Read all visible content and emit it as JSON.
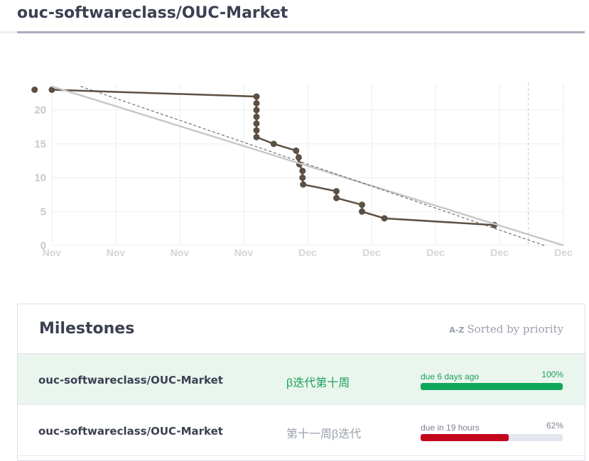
{
  "repo_title": "ouc-softwareclass/OUC-Market",
  "chart_data": {
    "type": "line",
    "title": "",
    "xlabel": "",
    "ylabel": "",
    "ylim": [
      0,
      24
    ],
    "yticks": [
      0,
      5,
      10,
      15,
      20
    ],
    "x_tick_labels": [
      "Nov",
      "Nov",
      "Nov",
      "Nov",
      "Dec",
      "Dec",
      "Dec",
      "Dec",
      "Dec"
    ],
    "grid": true,
    "series": [
      {
        "role": "actual",
        "color": "#5c4f43",
        "x": [
          0,
          3.2,
          3.2,
          3.2,
          3.2,
          3.2,
          3.2,
          3.2,
          3.47,
          3.82,
          3.86,
          3.87,
          3.92,
          3.92,
          3.93,
          4.45,
          4.45,
          4.85,
          4.85,
          5.2,
          6.92
        ],
        "values": [
          23,
          22,
          21,
          20,
          19,
          18,
          17,
          16,
          15,
          14,
          13,
          12,
          11,
          10,
          9,
          8,
          7,
          6,
          5,
          4,
          3
        ],
        "start_marker": {
          "x": -0.27,
          "y": 23
        }
      },
      {
        "role": "ideal",
        "color": "#c8c8c8",
        "x": [
          0,
          8
        ],
        "values": [
          23.5,
          0
        ]
      },
      {
        "role": "trend",
        "color": "#555555",
        "dashed": true,
        "x": [
          0.45,
          7.7
        ],
        "values": [
          23.5,
          0
        ]
      }
    ],
    "due_marker_x": 7.45
  },
  "milestones": {
    "title": "Milestones",
    "sort_icon": "A-Z",
    "sort_label": "Sorted by priority",
    "rows": [
      {
        "repo": "ouc-softwareclass/OUC-Market",
        "name": "β迭代第十周",
        "due": "due 6 days ago",
        "percent": "100%",
        "progress": 1.0,
        "color": "#1aa058",
        "bar_color": "#0da65a",
        "complete": true
      },
      {
        "repo": "ouc-softwareclass/OUC-Market",
        "name": "第十一周β迭代",
        "due": "due in 19 hours",
        "percent": "62%",
        "progress": 0.62,
        "color": "#9aa0ad",
        "bar_color": "#c3061c",
        "complete": false
      }
    ]
  }
}
